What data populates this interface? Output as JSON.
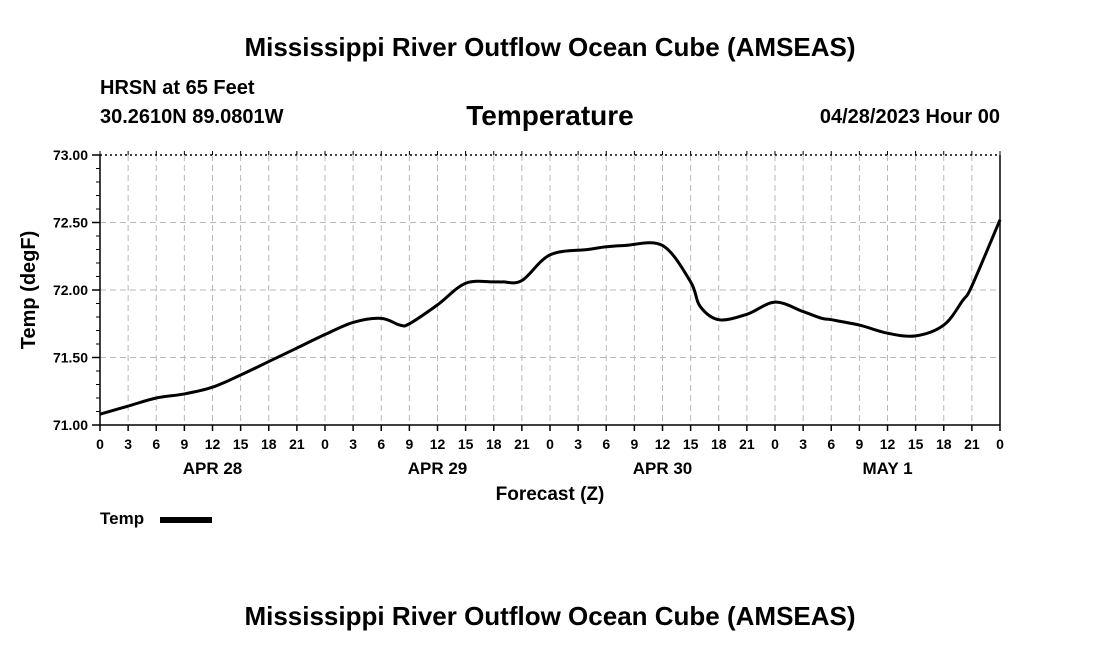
{
  "header": {
    "main_title": "Mississippi River Outflow Ocean Cube (AMSEAS)",
    "station": "HRSN at 65 Feet",
    "coords": "30.2610N  89.0801W",
    "plot_title": "Temperature",
    "datetime": "04/28/2023 Hour 00"
  },
  "footer": {
    "repeat_title": "Mississippi River Outflow Ocean Cube (AMSEAS)"
  },
  "legend": {
    "label": "Temp",
    "color": "#000000"
  },
  "chart_data": {
    "type": "line",
    "title": "Temperature",
    "xlabel": "Forecast (Z)",
    "ylabel": "Temp (degF)",
    "xlim": [
      0,
      96
    ],
    "ylim": [
      71.0,
      73.0
    ],
    "yticks": [
      "71.00",
      "71.50",
      "72.00",
      "72.50",
      "73.00"
    ],
    "xtick_hours": [
      0,
      3,
      6,
      9,
      12,
      15,
      18,
      21,
      24,
      27,
      30,
      33,
      36,
      39,
      42,
      45,
      48,
      51,
      54,
      57,
      60,
      63,
      66,
      69,
      72,
      75,
      78,
      81,
      84,
      87,
      90,
      93,
      96
    ],
    "xtick_labels": [
      "0",
      "3",
      "6",
      "9",
      "12",
      "15",
      "18",
      "21",
      "0",
      "3",
      "6",
      "9",
      "12",
      "15",
      "18",
      "21",
      "0",
      "3",
      "6",
      "9",
      "12",
      "15",
      "18",
      "21",
      "0",
      "3",
      "6",
      "9",
      "12",
      "15",
      "18",
      "21",
      "0"
    ],
    "day_labels": [
      {
        "label": "APR 28",
        "hour": 12
      },
      {
        "label": "APR 29",
        "hour": 36
      },
      {
        "label": "APR 30",
        "hour": 60
      },
      {
        "label": "MAY 1",
        "hour": 84
      }
    ],
    "grid": true,
    "series": [
      {
        "name": "Temp",
        "color": "#000000",
        "x": [
          0,
          3,
          6,
          9,
          12,
          15,
          18,
          21,
          24,
          27,
          30,
          32,
          33,
          36,
          39,
          42,
          43,
          45,
          48,
          52,
          54,
          56,
          60,
          63,
          64,
          66,
          69,
          72,
          75,
          77,
          78,
          81,
          84,
          87,
          90,
          92,
          93,
          96
        ],
        "y": [
          71.08,
          71.14,
          71.2,
          71.23,
          71.28,
          71.37,
          71.47,
          71.57,
          71.67,
          71.76,
          71.79,
          71.74,
          71.75,
          71.89,
          72.05,
          72.06,
          72.06,
          72.07,
          72.26,
          72.3,
          72.32,
          72.33,
          72.33,
          72.06,
          71.88,
          71.78,
          71.82,
          71.91,
          71.84,
          71.79,
          71.78,
          71.74,
          71.68,
          71.66,
          71.74,
          71.92,
          72.03,
          72.52
        ]
      }
    ]
  }
}
